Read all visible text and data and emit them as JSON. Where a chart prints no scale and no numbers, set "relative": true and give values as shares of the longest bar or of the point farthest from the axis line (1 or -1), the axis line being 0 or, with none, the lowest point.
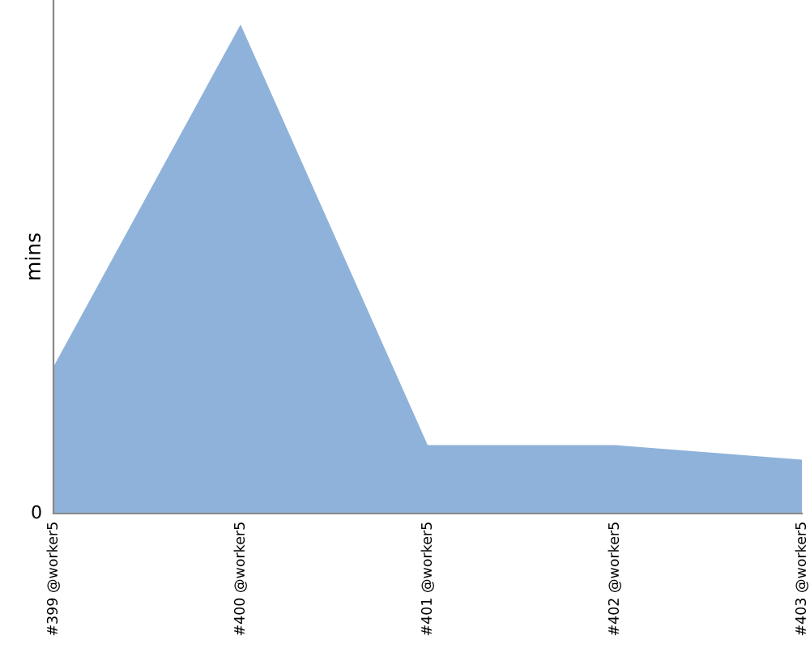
{
  "chart_data": {
    "type": "area",
    "ylabel": "mins",
    "relative": true,
    "categories": [
      "#399 @worker5",
      "#400 @worker5",
      "#401 @worker5",
      "#402 @worker5",
      "#403 @worker5"
    ],
    "series": [
      {
        "color": "#8fb2da",
        "values": [
          0.3,
          1,
          0.14,
          0.14,
          0.11
        ]
      }
    ],
    "annotations": [
      "0"
    ]
  }
}
